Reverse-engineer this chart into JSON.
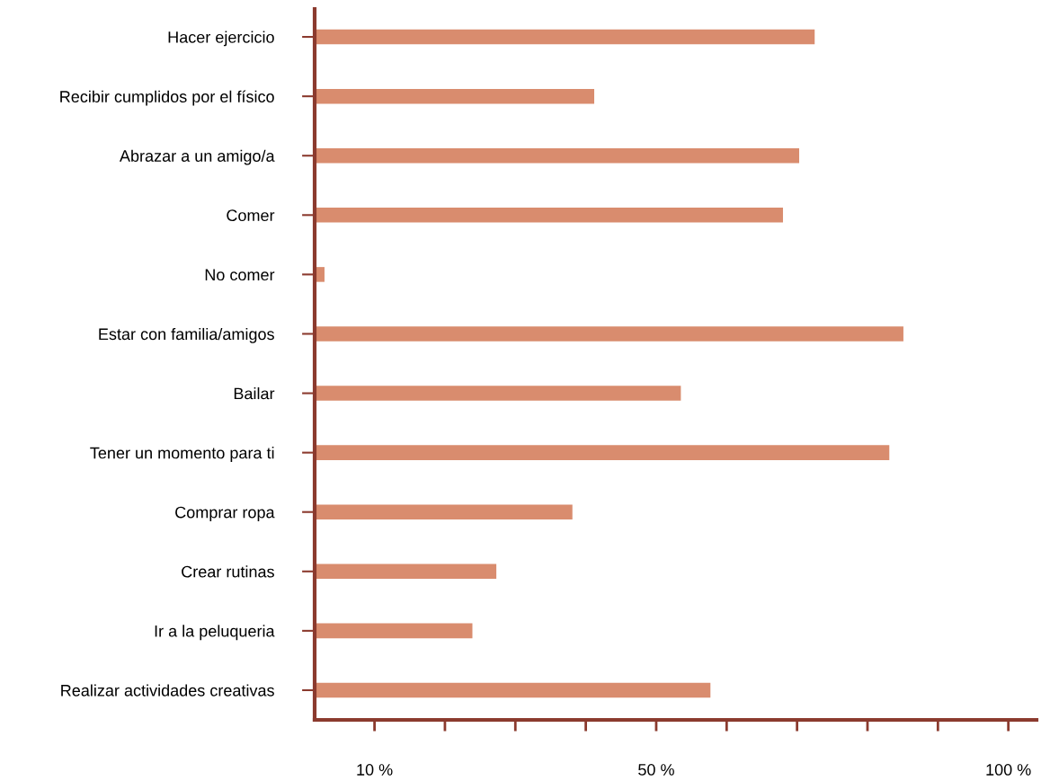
{
  "chart_data": {
    "type": "bar",
    "orientation": "horizontal",
    "categories": [
      "Hacer ejercicio",
      "Recibir cumplidos por el físico",
      "Abrazar a un amigo/a",
      "Comer",
      "No comer",
      "Estar con familia/amigos",
      "Bailar",
      "Tener un momento para ti",
      "Comprar ropa",
      "Crear rutinas",
      "Ir a la peluqueria",
      "Realizar actividades creativas"
    ],
    "values": [
      72.5,
      41.2,
      70.3,
      68.0,
      2.9,
      85.1,
      53.5,
      83.1,
      38.1,
      27.3,
      23.9,
      57.7
    ],
    "color": "#d98c6e",
    "xlim": [
      1.5,
      104
    ],
    "xticks": [
      {
        "value": 10,
        "label": "10 %"
      },
      {
        "value": 20,
        "label": null
      },
      {
        "value": 30,
        "label": null
      },
      {
        "value": 40,
        "label": null
      },
      {
        "value": 50,
        "label": "50 %"
      },
      {
        "value": 60,
        "label": null
      },
      {
        "value": 70,
        "label": null
      },
      {
        "value": 80,
        "label": null
      },
      {
        "value": 90,
        "label": null
      },
      {
        "value": 100,
        "label": "100 %"
      }
    ],
    "grid": false,
    "legend": false
  }
}
